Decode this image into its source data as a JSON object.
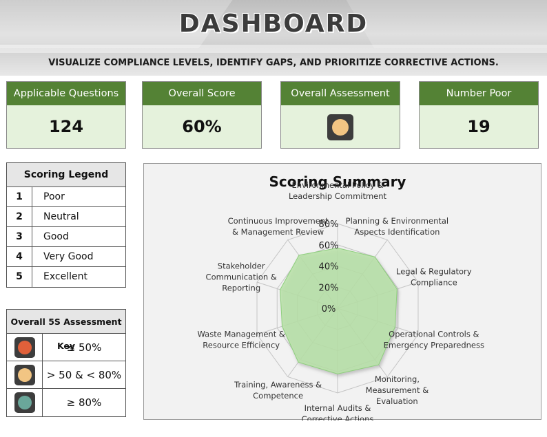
{
  "header": {
    "title": "DASHBOARD",
    "subtitle": "VISUALIZE COMPLIANCE LEVELS, IDENTIFY GAPS, AND PRIORITIZE CORRECTIVE ACTIONS."
  },
  "kpis": [
    {
      "label": "Applicable Questions",
      "value": "124"
    },
    {
      "label": "Overall Score",
      "value": "60%"
    },
    {
      "label": "Overall Assessment",
      "indicator_color": "#f2c583"
    },
    {
      "label": "Number Poor",
      "value": "19"
    }
  ],
  "scoring_legend": {
    "title": "Scoring Legend",
    "rows": [
      {
        "num": "1",
        "text": "Poor"
      },
      {
        "num": "2",
        "text": "Neutral"
      },
      {
        "num": "3",
        "text": "Good"
      },
      {
        "num": "4",
        "text": "Very Good"
      },
      {
        "num": "5",
        "text": "Excellent"
      }
    ]
  },
  "assessment_key": {
    "title": "Overall 5S Assessment Key",
    "rows": [
      {
        "color": "#e0603a",
        "text": "≤ 50%"
      },
      {
        "color": "#f2c583",
        "text": "> 50 & < 80%"
      },
      {
        "color": "#6aa79a",
        "text": "≥ 80%"
      }
    ]
  },
  "colors": {
    "header_green": "#548235",
    "kpi_fill": "#e5f2dc",
    "radar_fill": "#b8e2a8",
    "radar_stroke": "#8fcf7e"
  },
  "chart_data": {
    "type": "radar",
    "title": "Scoring Summary",
    "ticks": [
      "0%",
      "20%",
      "40%",
      "60%",
      "80%"
    ],
    "rmax": 80,
    "categories": [
      [
        "Environmental Policy &",
        "Leadership Commitment"
      ],
      [
        "Planning & Environmental",
        "Aspects Identification"
      ],
      [
        "Legal & Regulatory",
        "Compliance"
      ],
      [
        "Operational Controls &",
        "Emergency Preparedness"
      ],
      [
        "Monitoring,",
        "Measurement &",
        "Evaluation"
      ],
      [
        "Internal Audits &",
        "Corrective Actions"
      ],
      [
        "Training, Awareness &",
        "Competence"
      ],
      [
        "Waste Management &",
        "Resource Efficiency"
      ],
      [
        "Stakeholder",
        "Communication &",
        "Reporting"
      ],
      [
        "Continuous Improvement",
        "& Management Review"
      ]
    ],
    "values": [
      57,
      60,
      59,
      57,
      66,
      62,
      63,
      55,
      57,
      62
    ]
  }
}
